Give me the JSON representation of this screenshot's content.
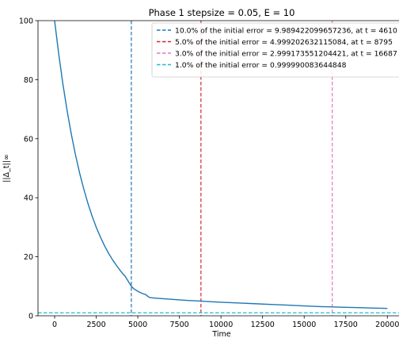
{
  "chart_data": {
    "type": "line",
    "title": "Phase 1 stepsize = 0.05, E = 10",
    "xlabel": "Time",
    "ylabel": "||Δ_t||∞",
    "xlim": [
      -1000,
      20700
    ],
    "ylim": [
      0,
      100
    ],
    "x_ticks": [
      0,
      2500,
      5000,
      7500,
      10000,
      12500,
      15000,
      17500,
      20000
    ],
    "x_tick_labels": [
      "0",
      "2500",
      "5000",
      "7500",
      "10000",
      "12500",
      "15000",
      "17500",
      "20000"
    ],
    "y_ticks": [
      0,
      20,
      40,
      60,
      80,
      100
    ],
    "y_tick_labels": [
      "0",
      "20",
      "40",
      "60",
      "80",
      "100"
    ],
    "grid": false,
    "legend_position": "top-right",
    "series": [
      {
        "color": "#1f77b4",
        "x": [
          0,
          250,
          500,
          750,
          1000,
          1250,
          1500,
          1750,
          2000,
          2250,
          2500,
          2750,
          3000,
          3250,
          3500,
          3750,
          4000,
          4250,
          4500,
          4610,
          4750,
          5000,
          5250,
          5500,
          5600,
          5700,
          6000,
          7000,
          8000,
          8795,
          9000,
          10000,
          11000,
          12000,
          13000,
          14000,
          15000,
          16000,
          16687,
          17000,
          18000,
          19000,
          20000
        ],
        "y": [
          99.9,
          88.5,
          78.4,
          69.5,
          61.6,
          54.6,
          48.4,
          43.0,
          38.1,
          33.8,
          30.0,
          26.7,
          23.7,
          21.1,
          18.8,
          16.8,
          14.9,
          13.3,
          11.0,
          10.0,
          9.2,
          8.3,
          7.6,
          7.1,
          6.6,
          6.2,
          6.0,
          5.6,
          5.2,
          5.0,
          4.9,
          4.6,
          4.35,
          4.1,
          3.85,
          3.6,
          3.35,
          3.1,
          3.0,
          2.95,
          2.8,
          2.65,
          2.5
        ]
      }
    ],
    "reference_lines": [
      {
        "orientation": "vertical",
        "value": 4610,
        "color": "#1f77b4",
        "label": "10.0% of the initial error = 9.989422099657236, at t = 4610"
      },
      {
        "orientation": "vertical",
        "value": 8795,
        "color": "#d62728",
        "label": "5.0% of the initial error = 4.999202632115084, at t = 8795"
      },
      {
        "orientation": "vertical",
        "value": 16687,
        "color": "#e377c2",
        "label": "3.0% of the initial error = 2.999173551204421, at t = 16687"
      },
      {
        "orientation": "horizontal",
        "value": 0.999990083644848,
        "color": "#17becf",
        "label": "1.0% of the initial error = 0.999990083644848"
      }
    ]
  }
}
